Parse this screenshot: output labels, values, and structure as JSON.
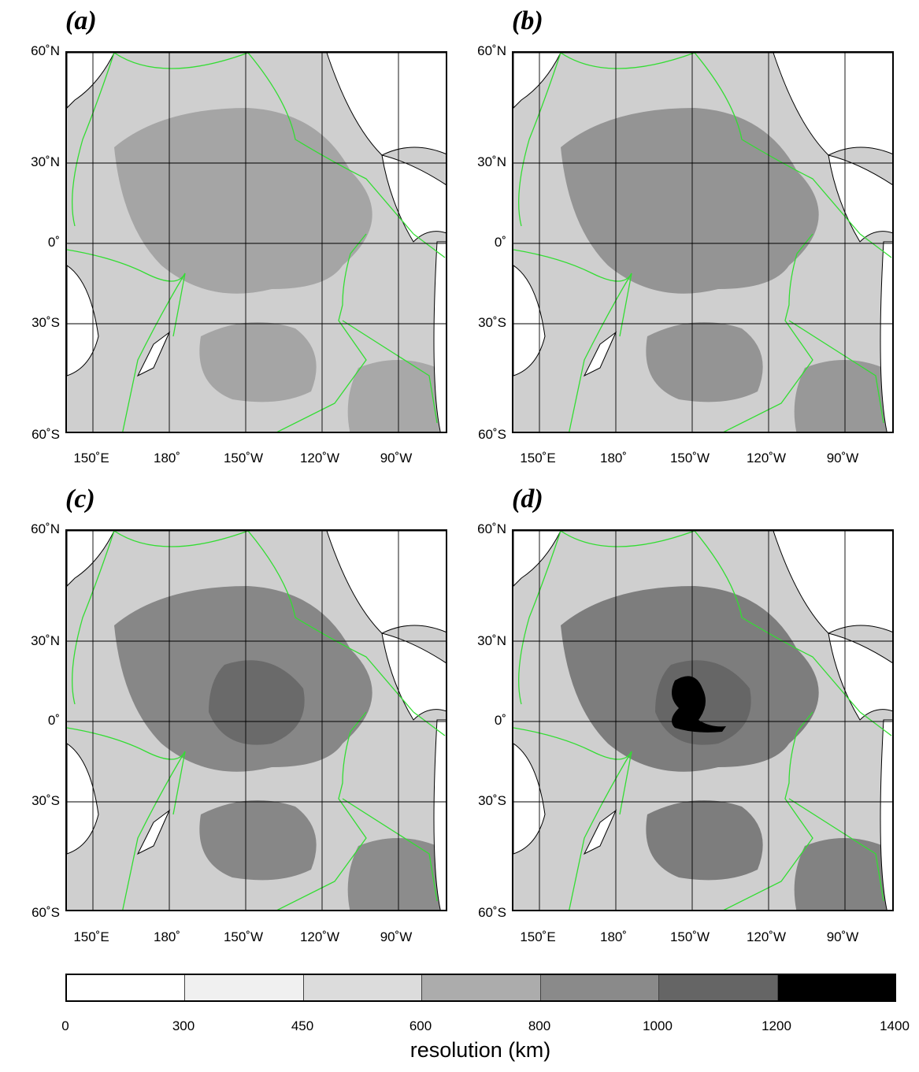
{
  "panels": [
    {
      "id": "a",
      "label": "(a)",
      "center": "#9d9d9d",
      "highs": [],
      "black": false
    },
    {
      "id": "b",
      "label": "(b)",
      "center": "#8a8a8a",
      "highs": [],
      "black": false
    },
    {
      "id": "c",
      "label": "(c)",
      "center": "#7a7a7a",
      "highs": [
        "#6a6a6a"
      ],
      "black": false
    },
    {
      "id": "d",
      "label": "(d)",
      "center": "#6e6e6e",
      "highs": [
        "#666666"
      ],
      "black": true
    }
  ],
  "lat_labels": [
    "60˚N",
    "30˚N",
    "0˚",
    "30˚S",
    "60˚S"
  ],
  "lon_labels": [
    "150˚E",
    "180˚",
    "150˚W",
    "120˚W",
    "90˚W"
  ],
  "colorbar": {
    "title": "resolution (km)",
    "ticks": [
      "0",
      "300",
      "450",
      "600",
      "800",
      "1000",
      "1200",
      "1400"
    ],
    "colors": [
      "#ffffff",
      "#f0f0f0",
      "#dcdcdc",
      "#acacac",
      "#8a8a8a",
      "#656565",
      "#000000"
    ]
  },
  "colors": {
    "plate_boundary": "#33dd33",
    "land": "#ffffff",
    "coast": "#000000"
  }
}
